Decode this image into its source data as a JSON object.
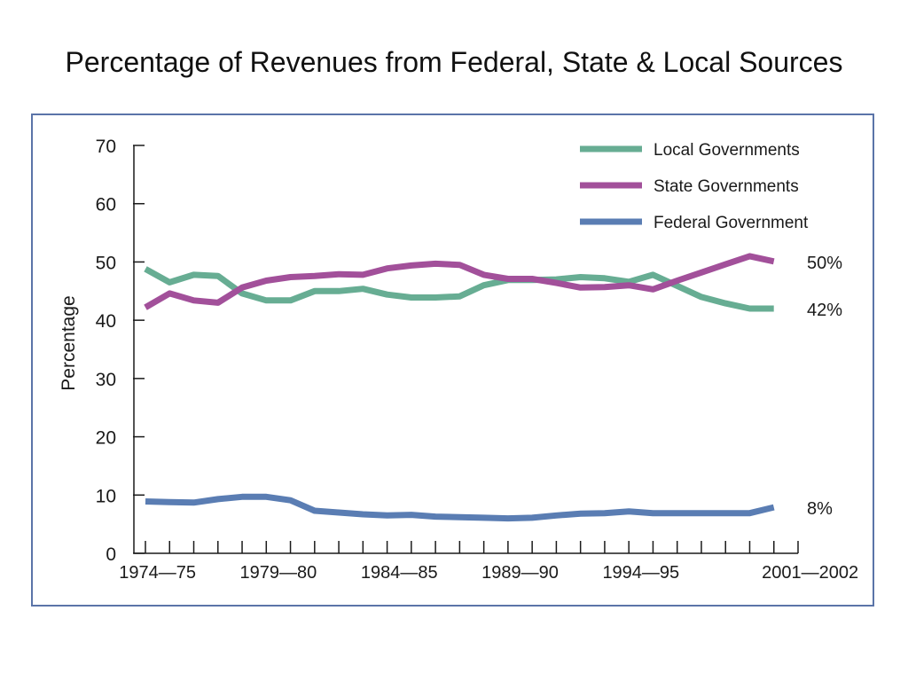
{
  "title": "Percentage of Revenues from Federal, State & Local Sources",
  "chart_data": {
    "type": "line",
    "title": "Percentage of Revenues from Federal, State & Local Sources",
    "ylabel": "Percentage",
    "xlabel": "",
    "ylim": [
      0,
      70
    ],
    "yticks": [
      0,
      10,
      20,
      30,
      40,
      50,
      60,
      70
    ],
    "x_start_year": 1974,
    "x_end_year": 2001,
    "x_labels": [
      {
        "label": "1974—75",
        "year": 1974
      },
      {
        "label": "1979—80",
        "year": 1979
      },
      {
        "label": "1984—85",
        "year": 1984
      },
      {
        "label": "1989—90",
        "year": 1989
      },
      {
        "label": "1994—95",
        "year": 1994
      },
      {
        "label": "2001—2002",
        "year": 2001
      }
    ],
    "legend_position": "top-right",
    "series": [
      {
        "name": "Local Governments",
        "color": "#67ad93",
        "end_label": "42%",
        "values": [
          48.8,
          46.5,
          47.8,
          47.6,
          44.6,
          43.4,
          43.4,
          45.0,
          45.0,
          45.4,
          44.4,
          43.9,
          43.9,
          44.1,
          46.0,
          46.9,
          46.9,
          47.0,
          47.4,
          47.2,
          46.6,
          47.8,
          45.9,
          44.0,
          42.9,
          42.0,
          42.0
        ]
      },
      {
        "name": "State Governments",
        "color": "#a2509a",
        "end_label": "50%",
        "values": [
          42.2,
          44.6,
          43.4,
          43.0,
          45.6,
          46.8,
          47.4,
          47.6,
          47.9,
          47.8,
          48.9,
          49.4,
          49.7,
          49.5,
          47.8,
          47.1,
          47.1,
          46.4,
          45.6,
          45.7,
          46.0,
          45.3,
          46.8,
          48.2,
          49.6,
          51.0,
          50.1
        ]
      },
      {
        "name": "Federal Government",
        "color": "#5a7db3",
        "end_label": "8%",
        "values": [
          8.9,
          8.8,
          8.7,
          9.3,
          9.7,
          9.7,
          9.1,
          7.3,
          7.0,
          6.7,
          6.5,
          6.6,
          6.3,
          6.2,
          6.1,
          6.0,
          6.1,
          6.5,
          6.8,
          6.9,
          7.2,
          6.9,
          6.9,
          6.9,
          6.9,
          6.9,
          7.9
        ]
      }
    ]
  }
}
